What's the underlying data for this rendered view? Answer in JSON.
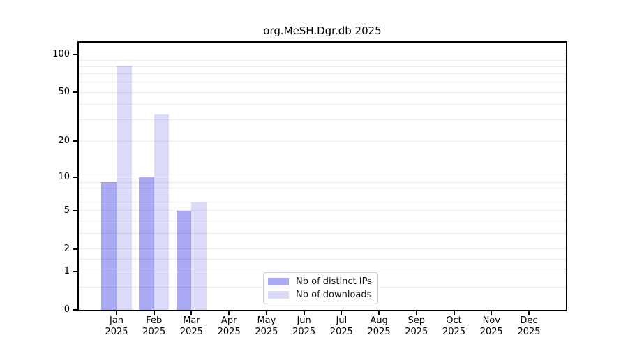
{
  "chart_data": {
    "type": "bar",
    "title": "org.MeSH.Dgr.db 2025",
    "months": [
      "Jan",
      "Feb",
      "Mar",
      "Apr",
      "May",
      "Jun",
      "Jul",
      "Aug",
      "Sep",
      "Oct",
      "Nov",
      "Dec"
    ],
    "year": "2025",
    "series": [
      {
        "name": "Nb of distinct IPs",
        "color": "#a9a9f4",
        "values": [
          9,
          10,
          5,
          0,
          0,
          0,
          0,
          0,
          0,
          0,
          0,
          0
        ]
      },
      {
        "name": "Nb of downloads",
        "color": "#dbdbf9",
        "values": [
          81,
          33,
          6,
          0,
          0,
          0,
          0,
          0,
          0,
          0,
          0,
          0
        ]
      }
    ],
    "xlabel": "",
    "ylabel": "",
    "y_scale": "log10(value+1)",
    "ylim": [
      0,
      124
    ],
    "y_ticks": [
      0,
      1,
      2,
      5,
      10,
      20,
      50,
      100
    ],
    "y_major_gridlines": [
      1,
      10,
      100
    ],
    "y_minor_gridlines": [
      0.5,
      1.5,
      3,
      4,
      6,
      7,
      8,
      9,
      30,
      40,
      60,
      70,
      80,
      90
    ],
    "grid": "horizontal",
    "legend_position": "lower center"
  }
}
